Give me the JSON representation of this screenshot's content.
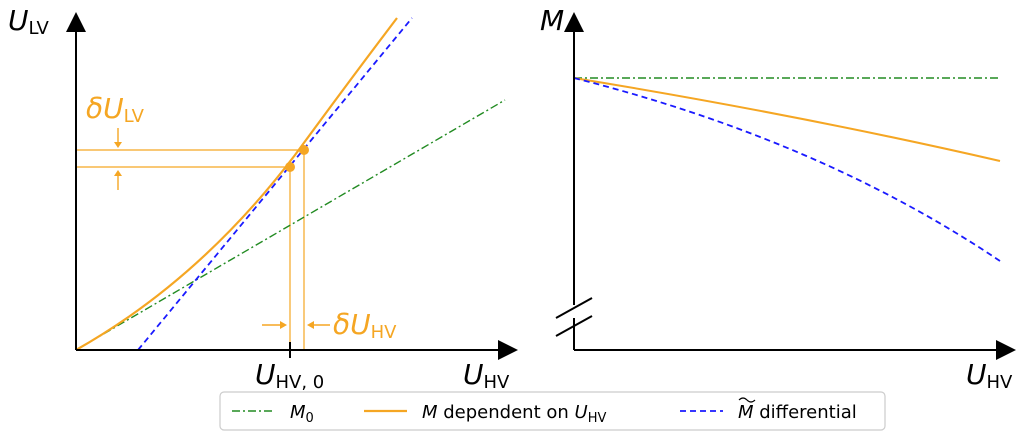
{
  "colors": {
    "m0": "#228b22",
    "m_dependent": "#f5a623",
    "m_differential": "#1a1aff",
    "axis": "#000000",
    "annotation": "#f5a623"
  },
  "left_panel": {
    "ylabel_main": "U",
    "ylabel_sub": "LV",
    "xlabel_main": "U",
    "xlabel_sub": "HV",
    "tick_main": "U",
    "tick_sub": "HV, 0",
    "delta_lv_main": "δU",
    "delta_lv_sub": "LV",
    "delta_hv_main": "δU",
    "delta_hv_sub": "HV"
  },
  "right_panel": {
    "ylabel": "M",
    "xlabel_main": "U",
    "xlabel_sub": "HV"
  },
  "legend": {
    "m0_main": "M",
    "m0_sub": "0",
    "dependent_pre": "M",
    "dependent_text": " dependent on ",
    "dependent_u": "U",
    "dependent_sub": "HV",
    "differential_pre": "M",
    "differential_text": " differential"
  }
}
